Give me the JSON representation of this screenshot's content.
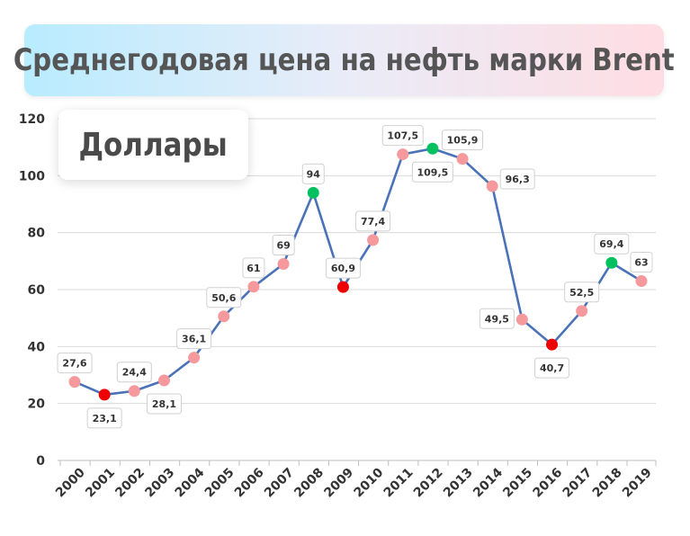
{
  "header": {
    "title": "Среднегодовая цена на нефть марки Brent",
    "unit": "Доллары"
  },
  "chart_data": {
    "type": "line",
    "title": "Среднегодовая цена на нефть марки Brent",
    "ylabel": "Доллары",
    "xlabel": "",
    "ylim": [
      0,
      120
    ],
    "yticks": [
      0,
      20,
      40,
      60,
      80,
      100,
      120
    ],
    "categories": [
      "2000",
      "2001",
      "2002",
      "2003",
      "2004",
      "2005",
      "2006",
      "2007",
      "2008",
      "2009",
      "2010",
      "2011",
      "2012",
      "2013",
      "2014",
      "2015",
      "2016",
      "2017",
      "2018",
      "2019"
    ],
    "values": [
      27.6,
      23.1,
      24.4,
      28.1,
      36.1,
      50.6,
      61,
      69,
      94,
      60.9,
      77.4,
      107.5,
      109.5,
      105.9,
      96.3,
      49.5,
      40.7,
      52.5,
      69.4,
      63
    ],
    "value_labels": [
      "27,6",
      "23,1",
      "24,4",
      "28,1",
      "36,1",
      "50,6",
      "61",
      "69",
      "94",
      "60,9",
      "77,4",
      "107,5",
      "109,5",
      "105,9",
      "96,3",
      "49,5",
      "40,7",
      "52,5",
      "69,4",
      "63"
    ],
    "point_kinds": [
      "normal",
      "min",
      "normal",
      "normal",
      "normal",
      "normal",
      "normal",
      "normal",
      "max",
      "min",
      "normal",
      "normal",
      "max",
      "normal",
      "normal",
      "normal",
      "min",
      "normal",
      "max",
      "normal"
    ],
    "label_sides": [
      "above",
      "below",
      "above",
      "below",
      "above",
      "above",
      "above",
      "above",
      "above",
      "above",
      "above",
      "above",
      "below",
      "above",
      "right",
      "left",
      "below",
      "above",
      "above",
      "above"
    ],
    "grid": true,
    "colors": {
      "line": "#4a72b8",
      "normal": "#f5999d",
      "min": "#ee0000",
      "max": "#00c060",
      "grid": "#d9d9d9"
    }
  }
}
